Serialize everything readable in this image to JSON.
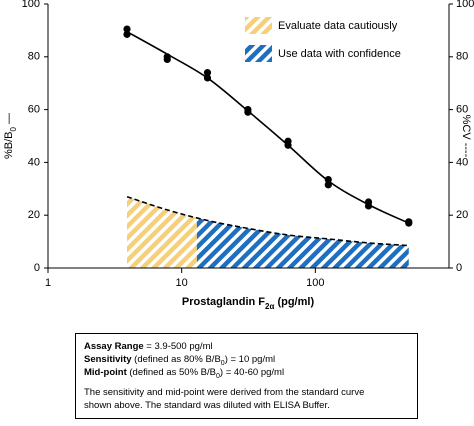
{
  "chart_data": {
    "type": "line",
    "xlabel": [
      {
        "text": "Prostaglandin F"
      },
      {
        "text": "2α",
        "style": "sub"
      },
      {
        "text": " (pg/ml)"
      }
    ],
    "ylabel": [
      {
        "text": "%B/B"
      },
      {
        "text": "0",
        "style": "sub"
      },
      {
        "text": " —"
      }
    ],
    "y2label": [
      {
        "text": "%CV ----"
      }
    ],
    "xscale": "log",
    "xlim": [
      1,
      1000
    ],
    "xticks": [
      1,
      10,
      100
    ],
    "ylim": [
      0,
      100
    ],
    "yticks": [
      0,
      20,
      40,
      60,
      80,
      100
    ],
    "y2lim": [
      0,
      100
    ],
    "y2ticks": [
      0,
      20,
      40,
      60,
      80,
      100
    ],
    "series": [
      {
        "type": "scatter",
        "color": "#000000",
        "x": [
          3.9,
          3.9,
          7.8,
          7.8,
          15.6,
          15.6,
          31.3,
          31.3,
          62.5,
          62.5,
          125,
          125,
          250,
          250,
          500,
          500
        ],
        "values": [
          90.5,
          88.5,
          80,
          79,
          74,
          72,
          60,
          59,
          48,
          46.5,
          33.5,
          31.5,
          25,
          23.5,
          17.5,
          17
        ]
      },
      {
        "type": "line",
        "color": "#000000",
        "dash": false,
        "x": [
          3.9,
          7.8,
          15.6,
          31.3,
          62.5,
          125,
          250,
          500
        ],
        "values": [
          89.5,
          81,
          72,
          59.5,
          46.5,
          33,
          24,
          17
        ]
      },
      {
        "type": "line",
        "color": "#000000",
        "dash": true,
        "axis": "y2",
        "x": [
          3.9,
          7.8,
          15.6,
          31.3,
          62.5,
          125,
          250,
          500
        ],
        "values": [
          27,
          22,
          18,
          15,
          12.5,
          11,
          9.5,
          8.5
        ]
      }
    ],
    "regions": [
      {
        "name": "Evaluate data cautiously",
        "color": "#f5cf7a",
        "xrange": [
          3.9,
          13
        ]
      },
      {
        "name": "Use data with confidence",
        "color": "#1f6fc0",
        "xrange": [
          13,
          500
        ]
      }
    ]
  },
  "notes": {
    "lines": [
      [
        {
          "text": "Assay Range",
          "style": "bold"
        },
        {
          "text": " = 3.9-500 pg/ml"
        }
      ],
      [
        {
          "text": "Sensitivity",
          "style": "bold"
        },
        {
          "text": " (defined as 80% B/B"
        },
        {
          "text": "0",
          "style": "sub"
        },
        {
          "text": ") = 10 pg/ml"
        }
      ],
      [
        {
          "text": "Mid-point",
          "style": "bold"
        },
        {
          "text": " (defined as 50% B/B"
        },
        {
          "text": "0",
          "style": "sub"
        },
        {
          "text": ") = 40-60 pg/ml"
        }
      ]
    ],
    "paragraph": [
      "The sensitivity and mid-point were derived from the standard curve",
      "shown above. The standard was diluted with ELISA Buffer."
    ]
  }
}
